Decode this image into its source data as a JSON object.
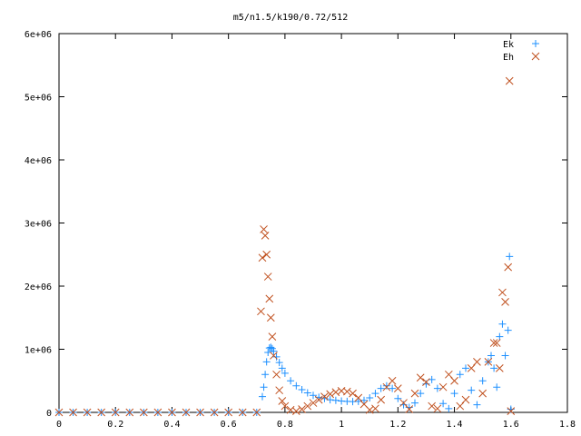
{
  "chart_data": {
    "type": "scatter",
    "title": "m5/n1.5/k190/0.72/512",
    "xlim": [
      0,
      1.8
    ],
    "ylim": [
      0,
      6000000
    ],
    "x_ticks": [
      0,
      0.2,
      0.4,
      0.6,
      0.8,
      1,
      1.2,
      1.4,
      1.6,
      1.8
    ],
    "x_tick_labels": [
      "0",
      "0.2",
      "0.4",
      "0.6",
      "0.8",
      "1",
      "1.2",
      "1.4",
      "1.6",
      "1.8"
    ],
    "y_ticks": [
      0,
      1000000,
      2000000,
      3000000,
      4000000,
      5000000,
      6000000
    ],
    "y_tick_labels": [
      "0",
      "1e+06",
      "2e+06",
      "3e+06",
      "4e+06",
      "5e+06",
      "6e+06"
    ],
    "grid": false,
    "legend_position": "top-right",
    "series": [
      {
        "name": "Ek",
        "marker": "plus",
        "color": "#1e90ff",
        "x": [
          0.0,
          0.05,
          0.1,
          0.15,
          0.2,
          0.25,
          0.3,
          0.35,
          0.4,
          0.45,
          0.5,
          0.55,
          0.6,
          0.65,
          0.7,
          0.72,
          0.725,
          0.73,
          0.735,
          0.74,
          0.745,
          0.75,
          0.755,
          0.76,
          0.77,
          0.78,
          0.79,
          0.8,
          0.82,
          0.84,
          0.86,
          0.88,
          0.9,
          0.92,
          0.94,
          0.96,
          0.98,
          1.0,
          1.02,
          1.04,
          1.06,
          1.08,
          1.1,
          1.12,
          1.14,
          1.16,
          1.18,
          1.2,
          1.22,
          1.24,
          1.26,
          1.28,
          1.3,
          1.32,
          1.34,
          1.36,
          1.38,
          1.4,
          1.42,
          1.44,
          1.46,
          1.48,
          1.5,
          1.52,
          1.53,
          1.54,
          1.55,
          1.56,
          1.57,
          1.58,
          1.59,
          1.595,
          1.6
        ],
        "y": [
          0,
          0,
          0,
          0,
          0,
          0,
          0,
          0,
          0,
          0,
          0,
          0,
          0,
          0,
          0,
          250000,
          400000,
          600000,
          800000,
          950000,
          1020000,
          1030000,
          1010000,
          970000,
          880000,
          790000,
          700000,
          620000,
          500000,
          420000,
          360000,
          310000,
          270000,
          240000,
          220000,
          200000,
          190000,
          180000,
          175000,
          170000,
          175000,
          190000,
          230000,
          300000,
          380000,
          420000,
          380000,
          220000,
          120000,
          80000,
          150000,
          300000,
          450000,
          520000,
          380000,
          140000,
          60000,
          300000,
          600000,
          700000,
          350000,
          120000,
          500000,
          800000,
          900000,
          700000,
          400000,
          1200000,
          1400000,
          900000,
          1300000,
          2470000,
          50000
        ]
      },
      {
        "name": "Eh",
        "marker": "cross",
        "color": "#c0501e",
        "x": [
          0.0,
          0.05,
          0.1,
          0.15,
          0.2,
          0.25,
          0.3,
          0.35,
          0.4,
          0.45,
          0.5,
          0.55,
          0.6,
          0.65,
          0.7,
          0.715,
          0.72,
          0.725,
          0.73,
          0.735,
          0.74,
          0.745,
          0.75,
          0.755,
          0.76,
          0.77,
          0.78,
          0.79,
          0.8,
          0.82,
          0.84,
          0.86,
          0.88,
          0.9,
          0.92,
          0.94,
          0.96,
          0.98,
          1.0,
          1.02,
          1.04,
          1.06,
          1.08,
          1.1,
          1.12,
          1.14,
          1.16,
          1.18,
          1.2,
          1.22,
          1.24,
          1.26,
          1.28,
          1.3,
          1.32,
          1.34,
          1.36,
          1.38,
          1.4,
          1.42,
          1.44,
          1.46,
          1.48,
          1.5,
          1.52,
          1.54,
          1.55,
          1.56,
          1.57,
          1.58,
          1.59,
          1.595,
          1.6
        ],
        "y": [
          0,
          0,
          0,
          0,
          0,
          0,
          0,
          0,
          0,
          0,
          0,
          0,
          0,
          0,
          0,
          1600000,
          2450000,
          2900000,
          2800000,
          2500000,
          2150000,
          1800000,
          1500000,
          1200000,
          900000,
          600000,
          350000,
          180000,
          100000,
          40000,
          20000,
          50000,
          100000,
          150000,
          200000,
          250000,
          290000,
          320000,
          340000,
          330000,
          300000,
          230000,
          130000,
          40000,
          60000,
          200000,
          400000,
          500000,
          380000,
          150000,
          50000,
          300000,
          550000,
          480000,
          100000,
          60000,
          400000,
          600000,
          500000,
          100000,
          200000,
          700000,
          800000,
          300000,
          800000,
          1100000,
          1100000,
          700000,
          1900000,
          1750000,
          2300000,
          5250000,
          20000
        ]
      }
    ]
  }
}
